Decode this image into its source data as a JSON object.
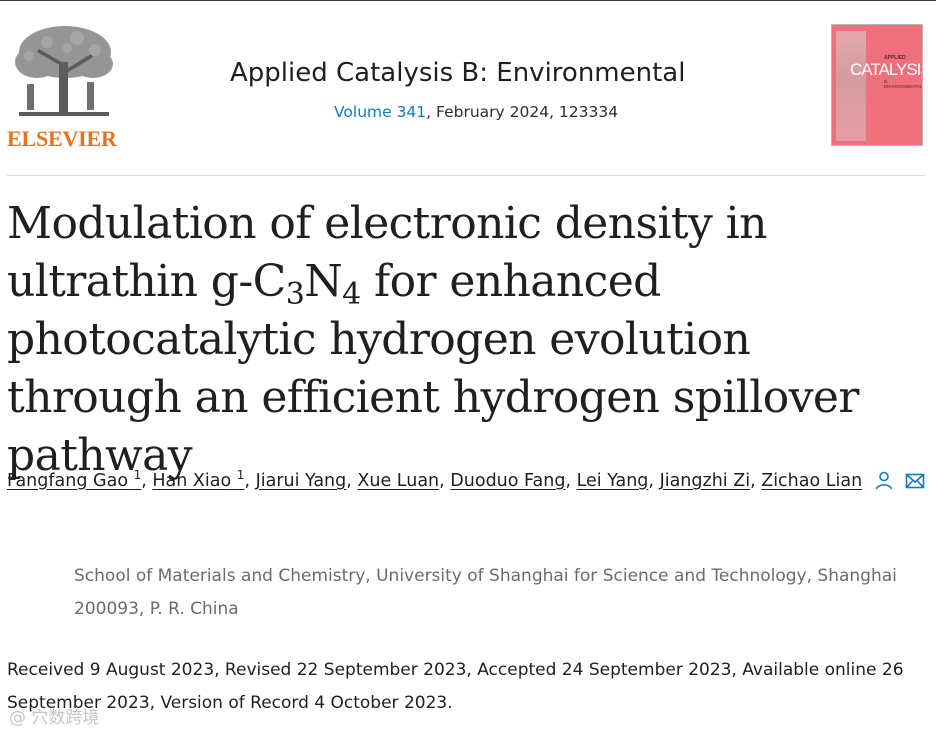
{
  "header": {
    "publisher": "ELSEVIER",
    "journal_title": "Applied Catalysis B: Environmental",
    "issue_link": "Volume 341",
    "issue_rest": ", February 2024, 123334",
    "cover_kicker": "APPLIED",
    "cover_word": "CATALYSIS",
    "cover_sub": "B: ENVIRONMENTAL"
  },
  "title": {
    "part1": "Modulation of electronic density in ultrathin g-C",
    "sub1": "3",
    "mid": "N",
    "sub2": "4",
    "part2": " for enhanced photocatalytic hydrogen evolution through an efficient hydrogen spillover pathway"
  },
  "authors": [
    {
      "name": "Fangfang Gao",
      "mark": "1"
    },
    {
      "name": "Han Xiao",
      "mark": "1"
    },
    {
      "name": "Jiarui Yang"
    },
    {
      "name": "Xue Luan"
    },
    {
      "name": "Duoduo Fang"
    },
    {
      "name": "Lei Yang"
    },
    {
      "name": "Jiangzhi Zi"
    },
    {
      "name": "Zichao Lian"
    }
  ],
  "affiliation": "School of Materials and Chemistry, University of Shanghai for Science and Technology, Shanghai 200093, P. R. China",
  "history": "Received 9 August 2023, Revised 22 September 2023, Accepted 24 September 2023, Available online 26 September 2023, Version of Record 4 October 2023.",
  "watermark": "@ 穴数跨境",
  "colors": {
    "accent_link": "#0c7dbb",
    "publisher_orange": "#e9711c",
    "cover_pink": "#ef6f7c"
  }
}
